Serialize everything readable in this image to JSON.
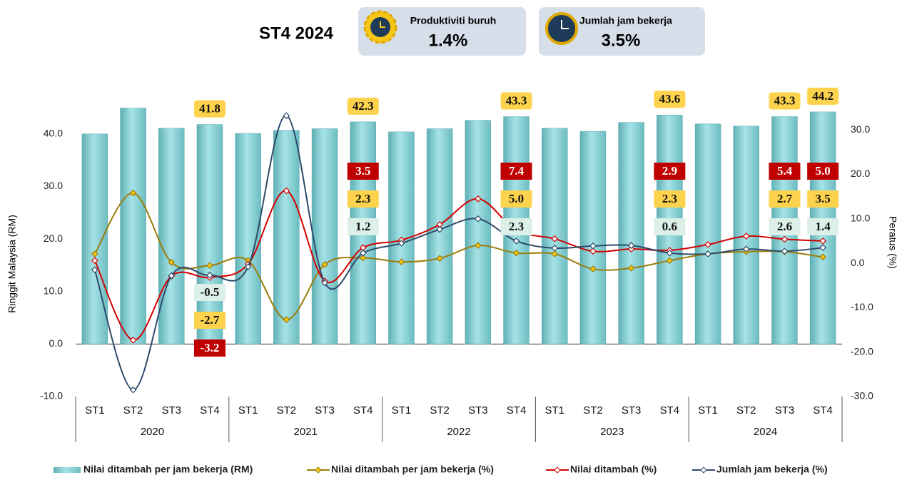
{
  "header": {
    "title": "ST4 2024",
    "cards": [
      {
        "label": "Produktiviti buruh",
        "value": "1.4%"
      },
      {
        "label": "Jumlah jam bekerja",
        "value": "3.5%"
      }
    ]
  },
  "chart_data": {
    "type": "bar",
    "y_label": "Ringgit Malaysia (RM)",
    "y2_label": "Peratus (%)",
    "categories": [
      "ST1",
      "ST2",
      "ST3",
      "ST4",
      "ST1",
      "ST2",
      "ST3",
      "ST4",
      "ST1",
      "ST2",
      "ST3",
      "ST4",
      "ST1",
      "ST2",
      "ST3",
      "ST4",
      "ST1",
      "ST2",
      "ST3",
      "ST4"
    ],
    "category_groups": [
      "2020",
      "2021",
      "2022",
      "2023",
      "2024"
    ],
    "ylim": [
      -10,
      45
    ],
    "yticks": [
      {
        "value": -10,
        "label": "-10.0"
      },
      {
        "value": 0,
        "label": "0.0"
      },
      {
        "value": 10,
        "label": "10.0"
      },
      {
        "value": 20,
        "label": "20.0"
      },
      {
        "value": 30,
        "label": "30.0"
      },
      {
        "value": 40,
        "label": "40.0"
      }
    ],
    "y2lim": [
      -30,
      35
    ],
    "y2ticks": [
      {
        "value": -30,
        "label": "-30.0"
      },
      {
        "value": -20,
        "label": "-20.0"
      },
      {
        "value": -10,
        "label": "-10.0"
      },
      {
        "value": 0,
        "label": "0.0"
      },
      {
        "value": 10,
        "label": "10.0"
      },
      {
        "value": 20,
        "label": "20.0"
      },
      {
        "value": 30,
        "label": "30.0"
      }
    ],
    "series": [
      {
        "name": "Nilai ditambah per jam bekerja (RM)",
        "type": "bar",
        "color": "#7fcfd4",
        "values": [
          40.0,
          46,
          41.1,
          41.8,
          40.1,
          40.7,
          41.0,
          42.3,
          40.4,
          41.0,
          42.6,
          43.3,
          41.1,
          40.5,
          42.2,
          43.6,
          41.9,
          41.5,
          43.3,
          44.2
        ],
        "value_labels": [
          null,
          null,
          null,
          "41.8",
          null,
          null,
          null,
          "42.3",
          null,
          null,
          null,
          "43.3",
          null,
          null,
          null,
          "43.6",
          null,
          null,
          "43.3",
          "44.2"
        ]
      },
      {
        "name": "Nilai ditambah per jam bekerja (%)",
        "type": "line",
        "axis": "y2",
        "color": "#9a7d0a",
        "values": [
          2.1,
          15.8,
          0.2,
          -0.5,
          0.6,
          -12.7,
          -0.3,
          1.2,
          0.3,
          1.1,
          4.0,
          2.3,
          2.1,
          -1.3,
          -1.1,
          0.6,
          2.1,
          2.6,
          2.6,
          1.4
        ],
        "value_labels": [
          null,
          null,
          null,
          "-0.5",
          null,
          null,
          null,
          "1.2",
          null,
          null,
          null,
          "2.3",
          null,
          null,
          null,
          "0.6",
          null,
          null,
          "2.6",
          "1.4"
        ]
      },
      {
        "name": "Nilai ditambah (%)",
        "type": "line",
        "axis": "y2",
        "color": "#d40000",
        "values": [
          0.6,
          -17.3,
          -2.9,
          -3.2,
          -0.2,
          16.3,
          -4.0,
          3.5,
          5.2,
          8.7,
          14.5,
          7.4,
          5.5,
          2.7,
          3.2,
          2.9,
          4.2,
          6.1,
          5.4,
          5.0
        ],
        "value_labels": [
          null,
          null,
          null,
          "-3.2",
          null,
          null,
          null,
          "3.5",
          null,
          null,
          null,
          "7.4",
          null,
          null,
          null,
          "2.9",
          null,
          null,
          "5.4",
          "5.0"
        ]
      },
      {
        "name": "Jumlah jam bekerja (%)",
        "type": "line",
        "axis": "y2",
        "color": "#2e4a6b",
        "values": [
          -1.5,
          -28.5,
          -2.8,
          -2.7,
          -0.8,
          33.2,
          -4.4,
          2.3,
          4.5,
          7.6,
          10.0,
          5.0,
          3.4,
          3.9,
          4.0,
          2.3,
          2.1,
          3.2,
          2.7,
          3.5
        ],
        "value_labels": [
          null,
          null,
          null,
          "-2.7",
          null,
          null,
          null,
          "2.3",
          null,
          null,
          null,
          "5.0",
          null,
          null,
          null,
          "2.3",
          null,
          null,
          "2.7",
          "3.5"
        ]
      }
    ]
  }
}
